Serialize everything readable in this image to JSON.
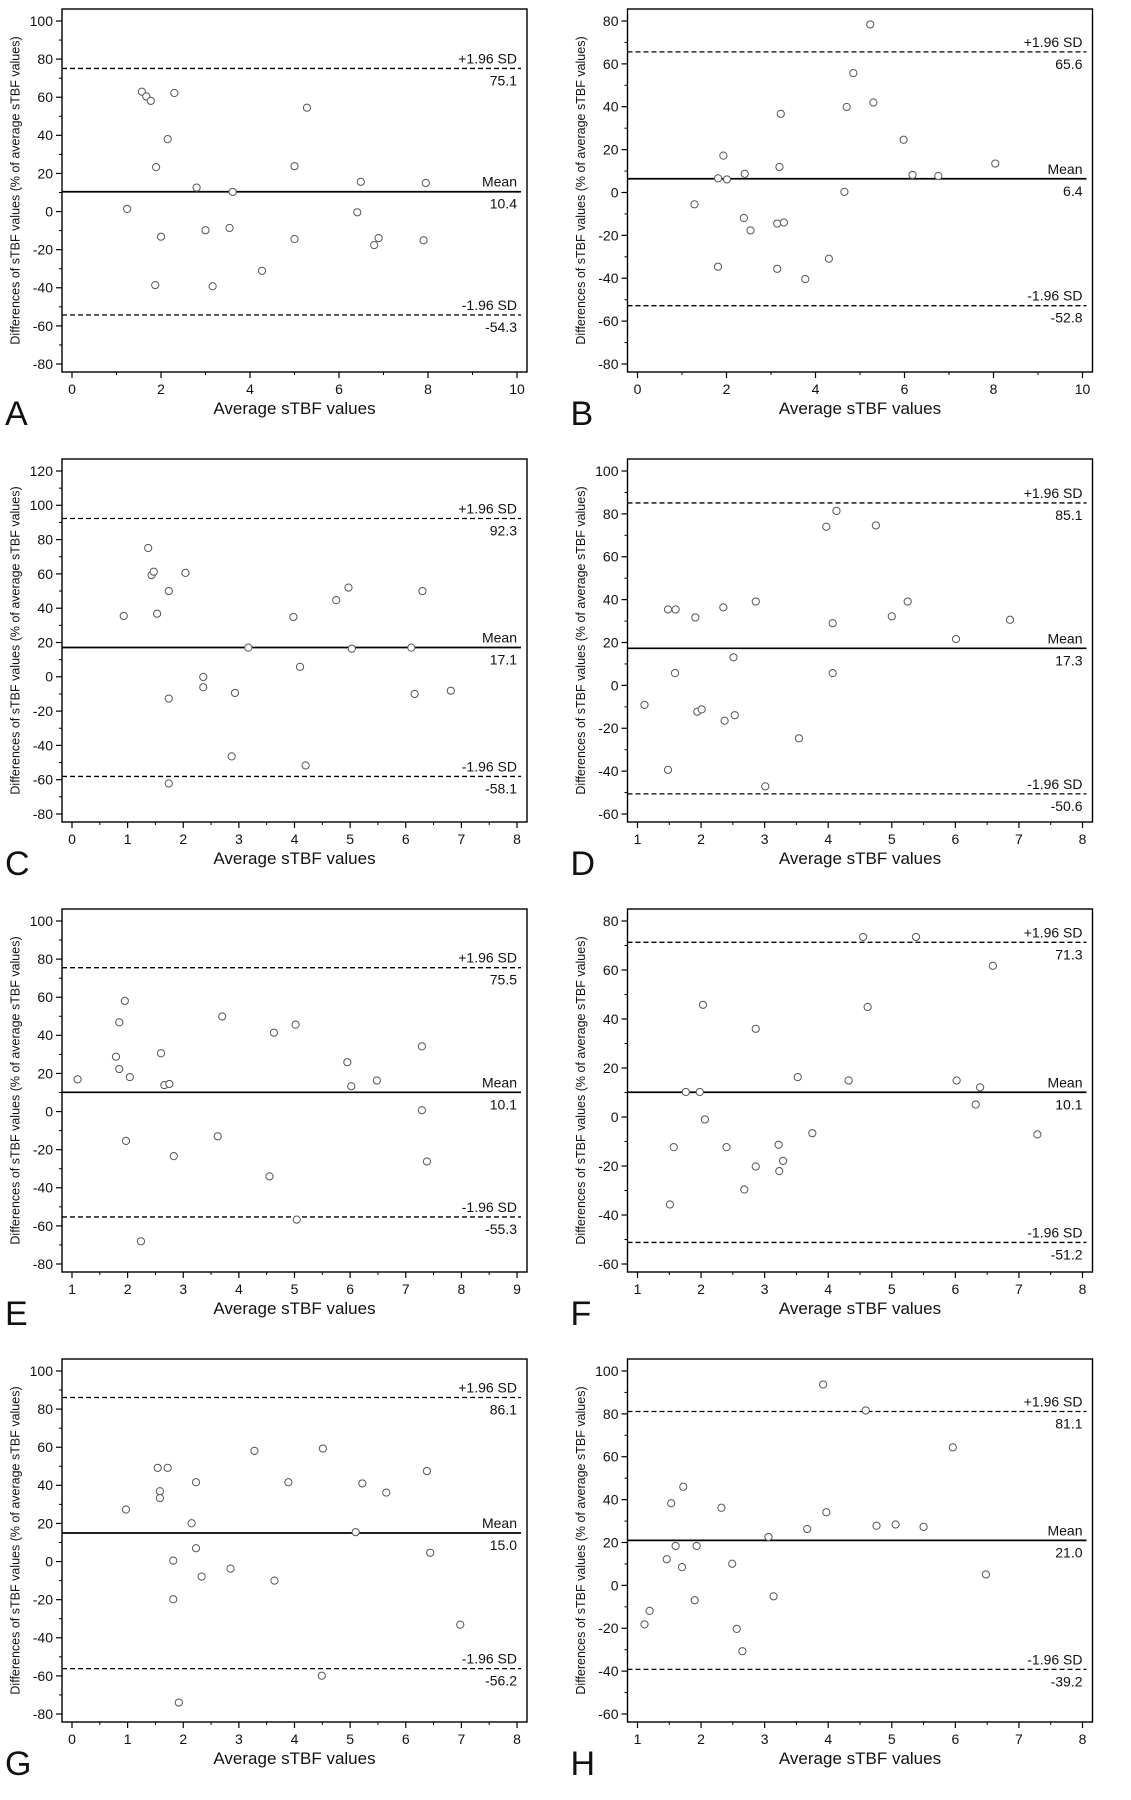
{
  "colors": {
    "axes": "#000000",
    "points": "#555555",
    "lines": "#000000",
    "text": "#111111"
  },
  "chart_data": [
    {
      "panel": "A",
      "type": "scatter",
      "xlabel": "Average sTBF values",
      "ylabel": "Differences of sTBF values (% of average sTBF values)",
      "xlim": [
        0,
        10
      ],
      "ylim": [
        -80,
        100
      ],
      "xticks": [
        0,
        2,
        4,
        6,
        8,
        10
      ],
      "yticks": [
        100,
        80,
        60,
        40,
        20,
        0,
        -20,
        -40,
        -60,
        -80
      ],
      "grid": false,
      "legend": "none",
      "points": [
        [
          1.24,
          1.4
        ],
        [
          1.57,
          62.9
        ],
        [
          1.67,
          60.4
        ],
        [
          1.77,
          58.1
        ],
        [
          2.3,
          62.2
        ],
        [
          2.15,
          38.0
        ],
        [
          1.89,
          23.3
        ],
        [
          2.0,
          -13.2
        ],
        [
          1.87,
          -38.6
        ],
        [
          2.8,
          12.6
        ],
        [
          3.0,
          -9.8
        ],
        [
          3.16,
          -39.2
        ],
        [
          3.61,
          10.3
        ],
        [
          3.54,
          -8.6
        ],
        [
          4.27,
          -31.1
        ],
        [
          5.0,
          23.8
        ],
        [
          5.28,
          54.5
        ],
        [
          5.0,
          -14.4
        ],
        [
          6.49,
          15.6
        ],
        [
          6.41,
          -0.4
        ],
        [
          6.79,
          -17.6
        ],
        [
          6.89,
          -13.9
        ],
        [
          7.95,
          15.0
        ],
        [
          7.9,
          -15.1
        ]
      ],
      "reference_lines": [
        {
          "label": "+1.96 SD",
          "value": 75.1,
          "style": "dashed"
        },
        {
          "label": "Mean",
          "value": 10.4,
          "style": "solid"
        },
        {
          "label": "-1.96 SD",
          "value": -54.3,
          "style": "dashed"
        }
      ]
    },
    {
      "panel": "B",
      "type": "scatter",
      "xlabel": "Average sTBF values",
      "ylabel": "Differences of sTBF values (% of average sTBF values)",
      "xlim": [
        0,
        10
      ],
      "ylim": [
        -80,
        80
      ],
      "xticks": [
        0,
        2,
        4,
        6,
        8,
        10
      ],
      "yticks": [
        80,
        60,
        40,
        20,
        0,
        -20,
        -40,
        -60,
        -80
      ],
      "grid": false,
      "legend": "none",
      "points": [
        [
          5.23,
          78.4
        ],
        [
          4.85,
          55.7
        ],
        [
          4.7,
          39.9
        ],
        [
          5.3,
          42.0
        ],
        [
          5.98,
          24.6
        ],
        [
          6.18,
          8.2
        ],
        [
          6.76,
          7.7
        ],
        [
          8.04,
          13.5
        ],
        [
          4.65,
          0.3
        ],
        [
          4.3,
          -30.9
        ],
        [
          3.77,
          -40.4
        ],
        [
          3.22,
          36.7
        ],
        [
          3.19,
          11.9
        ],
        [
          3.14,
          -14.5
        ],
        [
          3.29,
          -14.0
        ],
        [
          3.14,
          -35.6
        ],
        [
          2.41,
          8.7
        ],
        [
          2.39,
          -11.9
        ],
        [
          2.54,
          -17.7
        ],
        [
          1.93,
          17.2
        ],
        [
          1.81,
          6.6
        ],
        [
          2.01,
          6.1
        ],
        [
          1.81,
          -34.6
        ],
        [
          1.28,
          -5.5
        ]
      ],
      "reference_lines": [
        {
          "label": "+1.96 SD",
          "value": 65.6,
          "style": "dashed"
        },
        {
          "label": "Mean",
          "value": 6.4,
          "style": "solid"
        },
        {
          "label": "-1.96 SD",
          "value": -52.8,
          "style": "dashed"
        }
      ]
    },
    {
      "panel": "C",
      "type": "scatter",
      "xlabel": "Average sTBF values",
      "ylabel": "Differences of sTBF values (% of average sTBF values)",
      "xlim": [
        0,
        8
      ],
      "ylim": [
        -80,
        120
      ],
      "xticks": [
        0,
        1,
        2,
        3,
        4,
        5,
        6,
        7,
        8
      ],
      "yticks": [
        120,
        100,
        80,
        60,
        40,
        20,
        0,
        -20,
        -40,
        -60,
        -80
      ],
      "grid": false,
      "legend": "none",
      "points": [
        [
          0.93,
          35.5
        ],
        [
          1.37,
          75.1
        ],
        [
          1.43,
          59.3
        ],
        [
          1.47,
          61.3
        ],
        [
          1.53,
          36.8
        ],
        [
          2.04,
          60.6
        ],
        [
          1.74,
          50.0
        ],
        [
          1.74,
          -12.7
        ],
        [
          1.74,
          -62.2
        ],
        [
          2.36,
          -0.1
        ],
        [
          2.36,
          -6.1
        ],
        [
          3.17,
          17.0
        ],
        [
          2.93,
          -9.4
        ],
        [
          2.87,
          -46.4
        ],
        [
          3.98,
          34.9
        ],
        [
          4.1,
          5.8
        ],
        [
          4.2,
          -51.7
        ],
        [
          4.75,
          44.7
        ],
        [
          4.97,
          52.0
        ],
        [
          5.03,
          16.4
        ],
        [
          6.1,
          17.0
        ],
        [
          6.16,
          -10.0
        ],
        [
          6.3,
          50.0
        ],
        [
          6.81,
          -8.1
        ]
      ],
      "reference_lines": [
        {
          "label": "+1.96 SD",
          "value": 92.3,
          "style": "dashed"
        },
        {
          "label": "Mean",
          "value": 17.1,
          "style": "solid"
        },
        {
          "label": "-1.96 SD",
          "value": -58.1,
          "style": "dashed"
        }
      ]
    },
    {
      "panel": "D",
      "type": "scatter",
      "xlabel": "Average sTBF values",
      "ylabel": "Differences of sTBF values (% of average sTBF values)",
      "xlim": [
        1,
        8
      ],
      "ylim": [
        -60,
        100
      ],
      "xticks": [
        1,
        2,
        3,
        4,
        5,
        6,
        7,
        8
      ],
      "yticks": [
        100,
        80,
        60,
        40,
        20,
        0,
        -20,
        -40,
        -60
      ],
      "grid": false,
      "legend": "none",
      "points": [
        [
          1.11,
          -9.1
        ],
        [
          1.48,
          35.4
        ],
        [
          1.6,
          35.4
        ],
        [
          1.59,
          5.7
        ],
        [
          1.48,
          -39.4
        ],
        [
          1.91,
          31.7
        ],
        [
          1.94,
          -12.3
        ],
        [
          2.01,
          -11.2
        ],
        [
          2.35,
          36.4
        ],
        [
          2.37,
          -16.5
        ],
        [
          2.51,
          13.1
        ],
        [
          2.53,
          -13.9
        ],
        [
          2.86,
          39.1
        ],
        [
          3.01,
          -47.1
        ],
        [
          3.54,
          -24.7
        ],
        [
          3.97,
          74.0
        ],
        [
          4.13,
          81.4
        ],
        [
          4.07,
          29.0
        ],
        [
          4.07,
          5.7
        ],
        [
          4.75,
          74.6
        ],
        [
          5.0,
          32.2
        ],
        [
          5.25,
          39.1
        ],
        [
          6.01,
          21.6
        ],
        [
          6.86,
          30.6
        ]
      ],
      "reference_lines": [
        {
          "label": "+1.96 SD",
          "value": 85.1,
          "style": "dashed"
        },
        {
          "label": "Mean",
          "value": 17.3,
          "style": "solid"
        },
        {
          "label": "-1.96 SD",
          "value": -50.6,
          "style": "dashed"
        }
      ]
    },
    {
      "panel": "E",
      "type": "scatter",
      "xlabel": "Average sTBF values",
      "ylabel": "Differences of sTBF values (% of average sTBF values)",
      "xlim": [
        1,
        9
      ],
      "ylim": [
        -80,
        100
      ],
      "xticks": [
        1,
        2,
        3,
        4,
        5,
        6,
        7,
        8,
        9
      ],
      "yticks": [
        100,
        80,
        60,
        40,
        20,
        0,
        -20,
        -40,
        -60,
        -80
      ],
      "grid": false,
      "legend": "none",
      "points": [
        [
          1.1,
          16.9
        ],
        [
          1.79,
          28.8
        ],
        [
          1.85,
          46.8
        ],
        [
          1.85,
          22.3
        ],
        [
          1.95,
          58.1
        ],
        [
          2.04,
          18.1
        ],
        [
          1.97,
          -15.4
        ],
        [
          2.24,
          -68.1
        ],
        [
          2.6,
          30.6
        ],
        [
          2.66,
          13.9
        ],
        [
          2.75,
          14.5
        ],
        [
          2.83,
          -23.4
        ],
        [
          3.7,
          49.9
        ],
        [
          3.62,
          -13.0
        ],
        [
          4.55,
          -34.0
        ],
        [
          4.63,
          41.4
        ],
        [
          5.02,
          45.6
        ],
        [
          5.04,
          -56.7
        ],
        [
          5.95,
          25.9
        ],
        [
          6.02,
          13.3
        ],
        [
          6.48,
          16.3
        ],
        [
          7.29,
          34.2
        ],
        [
          7.29,
          0.7
        ],
        [
          7.38,
          -26.2
        ]
      ],
      "reference_lines": [
        {
          "label": "+1.96 SD",
          "value": 75.5,
          "style": "dashed"
        },
        {
          "label": "Mean",
          "value": 10.1,
          "style": "solid"
        },
        {
          "label": "-1.96 SD",
          "value": -55.3,
          "style": "dashed"
        }
      ]
    },
    {
      "panel": "F",
      "type": "scatter",
      "xlabel": "Average sTBF values",
      "ylabel": "Differences of sTBF values (% of average sTBF values)",
      "xlim": [
        1,
        8
      ],
      "ylim": [
        -60,
        80
      ],
      "xticks": [
        1,
        2,
        3,
        4,
        5,
        6,
        7,
        8
      ],
      "yticks": [
        80,
        60,
        40,
        20,
        0,
        -20,
        -40,
        -60
      ],
      "grid": false,
      "legend": "none",
      "points": [
        [
          1.51,
          -35.7
        ],
        [
          1.57,
          -12.3
        ],
        [
          1.76,
          10.2
        ],
        [
          1.98,
          10.2
        ],
        [
          2.03,
          45.8
        ],
        [
          2.06,
          -1.0
        ],
        [
          2.4,
          -12.3
        ],
        [
          2.68,
          -29.6
        ],
        [
          2.86,
          36.0
        ],
        [
          2.86,
          -20.2
        ],
        [
          3.22,
          -11.3
        ],
        [
          3.23,
          -22.1
        ],
        [
          3.29,
          -17.9
        ],
        [
          3.52,
          16.3
        ],
        [
          3.75,
          -6.6
        ],
        [
          4.32,
          14.9
        ],
        [
          4.55,
          73.5
        ],
        [
          4.62,
          44.9
        ],
        [
          5.38,
          73.5
        ],
        [
          6.02,
          14.9
        ],
        [
          6.32,
          5.1
        ],
        [
          6.39,
          12.1
        ],
        [
          6.59,
          61.7
        ],
        [
          7.29,
          -7.1
        ]
      ],
      "reference_lines": [
        {
          "label": "+1.96 SD",
          "value": 71.3,
          "style": "dashed"
        },
        {
          "label": "Mean",
          "value": 10.1,
          "style": "solid"
        },
        {
          "label": "-1.96 SD",
          "value": -51.2,
          "style": "dashed"
        }
      ]
    },
    {
      "panel": "G",
      "type": "scatter",
      "xlabel": "Average sTBF values",
      "ylabel": "Differences of sTBF values (% of average sTBF values)",
      "xlim": [
        0,
        8
      ],
      "ylim": [
        -80,
        100
      ],
      "xticks": [
        0,
        1,
        2,
        3,
        4,
        5,
        6,
        7,
        8
      ],
      "yticks": [
        100,
        80,
        60,
        40,
        20,
        0,
        -20,
        -40,
        -60,
        -80
      ],
      "grid": false,
      "legend": "none",
      "points": [
        [
          0.97,
          27.3
        ],
        [
          1.54,
          49.2
        ],
        [
          1.58,
          36.9
        ],
        [
          1.58,
          33.3
        ],
        [
          1.72,
          49.2
        ],
        [
          1.82,
          0.5
        ],
        [
          1.82,
          -19.8
        ],
        [
          1.92,
          -74.0
        ],
        [
          2.15,
          20.1
        ],
        [
          2.23,
          41.6
        ],
        [
          2.23,
          7.0
        ],
        [
          2.33,
          -7.9
        ],
        [
          2.85,
          -3.7
        ],
        [
          3.28,
          58.1
        ],
        [
          3.64,
          -10.0
        ],
        [
          3.89,
          41.6
        ],
        [
          4.51,
          59.3
        ],
        [
          4.49,
          -59.9
        ],
        [
          5.1,
          15.4
        ],
        [
          5.22,
          41.0
        ],
        [
          5.65,
          36.2
        ],
        [
          6.38,
          47.5
        ],
        [
          6.44,
          4.6
        ],
        [
          6.98,
          -33.1
        ]
      ],
      "reference_lines": [
        {
          "label": "+1.96 SD",
          "value": 86.1,
          "style": "dashed"
        },
        {
          "label": "Mean",
          "value": 15.0,
          "style": "solid"
        },
        {
          "label": "-1.96 SD",
          "value": -56.2,
          "style": "dashed"
        }
      ]
    },
    {
      "panel": "H",
      "type": "scatter",
      "xlabel": "Average sTBF values",
      "ylabel": "Differences of sTBF values (% of average sTBF values)",
      "xlim": [
        1,
        8
      ],
      "ylim": [
        -60,
        100
      ],
      "xticks": [
        1,
        2,
        3,
        4,
        5,
        6,
        7,
        8
      ],
      "yticks": [
        100,
        80,
        60,
        40,
        20,
        0,
        -20,
        -40,
        -60
      ],
      "grid": false,
      "legend": "none",
      "points": [
        [
          1.11,
          -18.2
        ],
        [
          1.19,
          -11.9
        ],
        [
          1.46,
          12.2
        ],
        [
          1.53,
          38.3
        ],
        [
          1.6,
          18.4
        ],
        [
          1.7,
          8.5
        ],
        [
          1.72,
          46.0
        ],
        [
          1.9,
          -6.9
        ],
        [
          1.93,
          18.4
        ],
        [
          2.32,
          36.2
        ],
        [
          2.49,
          10.1
        ],
        [
          2.56,
          -20.3
        ],
        [
          2.65,
          -30.7
        ],
        [
          3.06,
          22.6
        ],
        [
          3.14,
          -5.1
        ],
        [
          3.67,
          26.3
        ],
        [
          3.97,
          34.1
        ],
        [
          3.92,
          93.7
        ],
        [
          4.59,
          81.6
        ],
        [
          4.76,
          27.8
        ],
        [
          5.06,
          28.4
        ],
        [
          5.5,
          27.3
        ],
        [
          5.96,
          64.4
        ],
        [
          6.48,
          5.1
        ]
      ],
      "reference_lines": [
        {
          "label": "+1.96 SD",
          "value": 81.1,
          "style": "dashed"
        },
        {
          "label": "Mean",
          "value": 21.0,
          "style": "solid"
        },
        {
          "label": "-1.96 SD",
          "value": -39.2,
          "style": "dashed"
        }
      ]
    }
  ]
}
